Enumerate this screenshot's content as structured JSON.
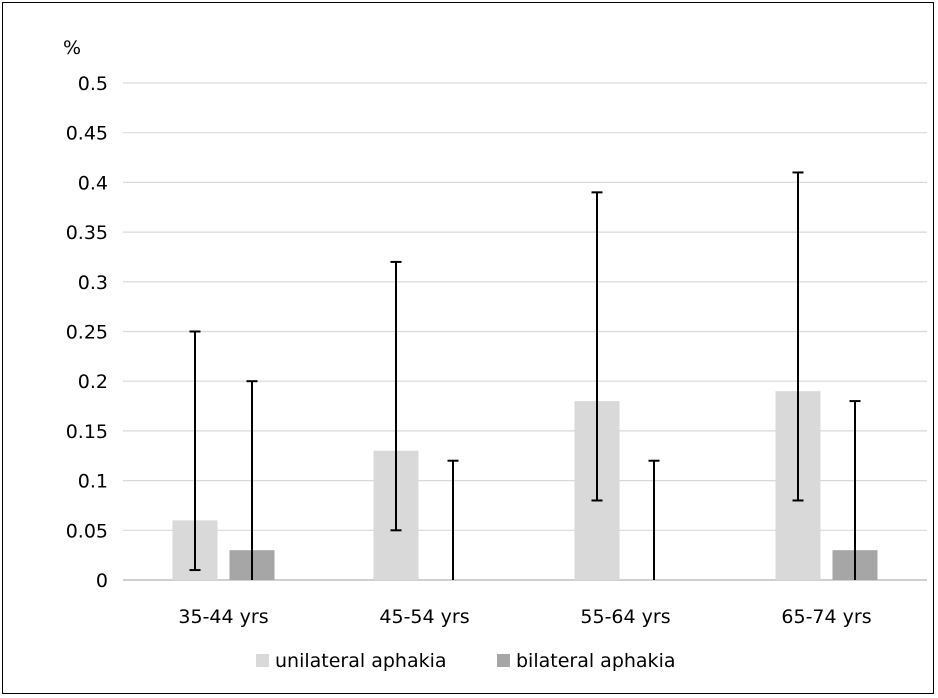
{
  "chart_data": {
    "type": "bar",
    "ylabel": "%",
    "ylim": [
      0,
      0.5
    ],
    "yticks": [
      "0",
      "0.05",
      "0.1",
      "0.15",
      "0.2",
      "0.25",
      "0.3",
      "0.35",
      "0.4",
      "0.45",
      "0.5"
    ],
    "categories": [
      "35-44 yrs",
      "45-54 yrs",
      "55-64 yrs",
      "65-74 yrs"
    ],
    "series": [
      {
        "name": "unilateral aphakia",
        "color": "#d9d9d9",
        "values": [
          0.06,
          0.13,
          0.18,
          0.19
        ],
        "error_low": [
          0.01,
          0.05,
          0.08,
          0.08
        ],
        "error_high": [
          0.25,
          0.32,
          0.39,
          0.41
        ]
      },
      {
        "name": "bilateral aphakia",
        "color": "#a6a6a6",
        "values": [
          0.03,
          0.0,
          0.0,
          0.03
        ],
        "error_low": [
          0.0,
          0.0,
          0.0,
          0.0
        ],
        "error_high": [
          0.2,
          0.12,
          0.12,
          0.18
        ]
      }
    ],
    "grid": true,
    "legend_position": "bottom"
  }
}
